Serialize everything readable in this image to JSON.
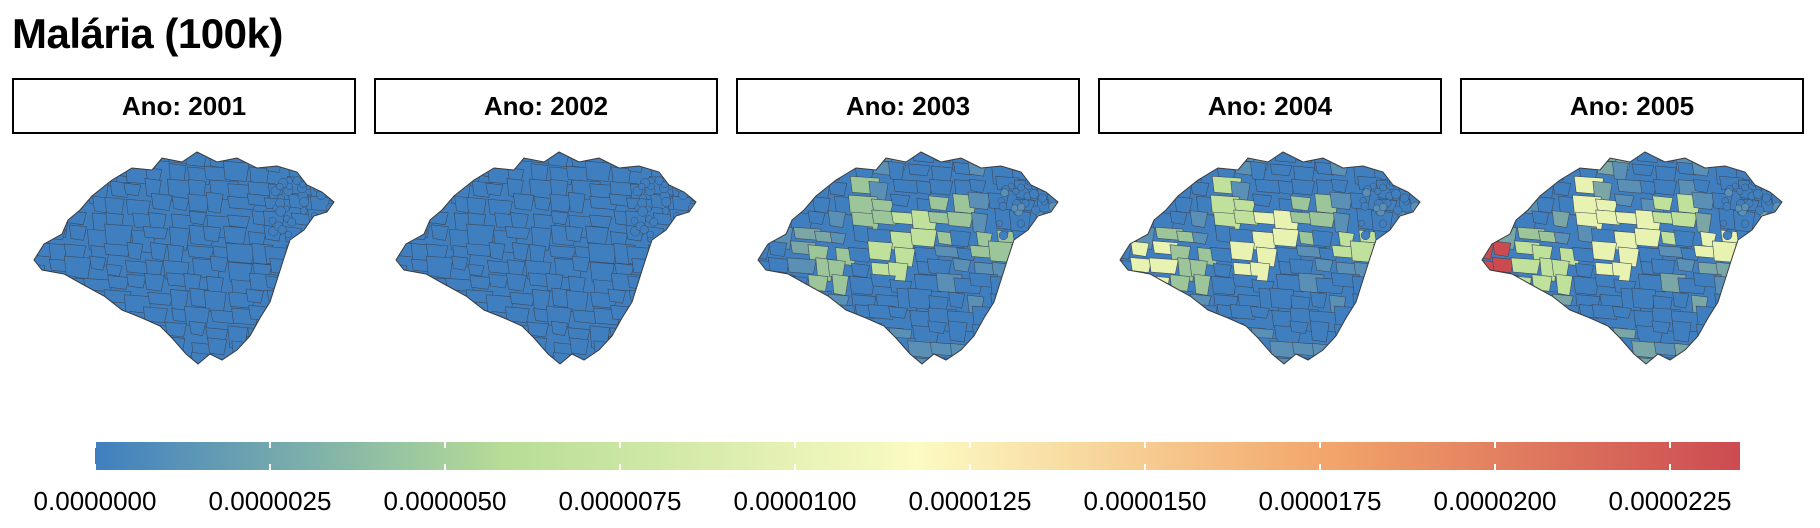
{
  "title": "Malária (100k)",
  "facets": [
    {
      "label": "Ano: 2001",
      "palette": "p1"
    },
    {
      "label": "Ano: 2002",
      "palette": "p1"
    },
    {
      "label": "Ano: 2003",
      "palette": "p2"
    },
    {
      "label": "Ano: 2004",
      "palette": "p3"
    },
    {
      "label": "Ano: 2005",
      "palette": "p4"
    }
  ],
  "legend": {
    "min": 0.0,
    "max": 2.35e-05,
    "colors": [
      "#3f7fc0",
      "#b7dd96",
      "#fbfbc2",
      "#f2a56a",
      "#cc4b51"
    ],
    "ticks": [
      "0.0000000",
      "0.0000025",
      "0.0000050",
      "0.0000075",
      "0.0000100",
      "0.0000125",
      "0.0000150",
      "0.0000175",
      "0.0000200",
      "0.0000225"
    ],
    "tick_values": [
      0.0,
      2.5e-06,
      5e-06,
      7.5e-06,
      1e-05,
      1.25e-05,
      1.5e-05,
      1.75e-05,
      2e-05,
      2.25e-05
    ]
  }
}
